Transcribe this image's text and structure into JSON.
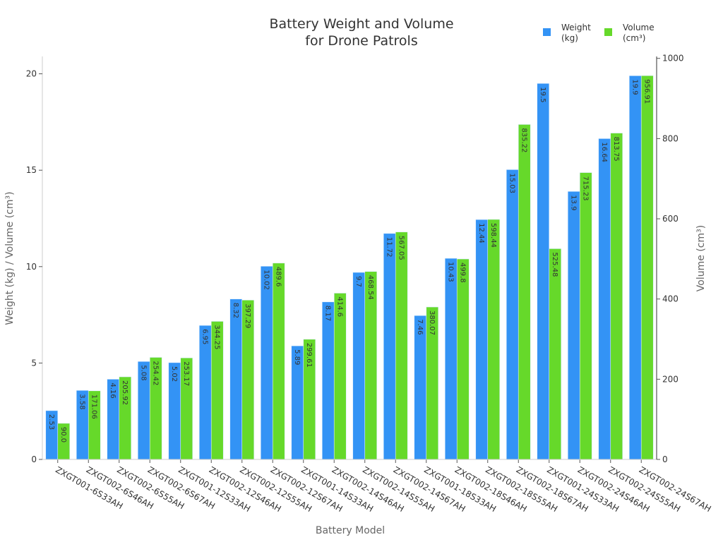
{
  "chart_data": {
    "type": "bar",
    "title": "Battery Weight and Volume\nfor Drone Patrols",
    "xlabel": "Battery Model",
    "ylabel": "Weight (kg) / Volume (cm³)",
    "y2label": "Volume (cm³)",
    "ylim": [
      0,
      20.9
    ],
    "y2lim": [
      0,
      1004.8
    ],
    "yticks": [
      0,
      5,
      10,
      15,
      20
    ],
    "y2ticks": [
      0,
      200,
      400,
      600,
      800,
      1000
    ],
    "grid": false,
    "legend_placement": "top-right",
    "categories": [
      "ZXGT001-6S33AH",
      "ZXGT002-6S46AH",
      "ZXGT002-6S55AH",
      "ZXGT002-6S67AH",
      "ZXGT001-12S33AH",
      "ZXGT002-12S46AH",
      "ZXGT002-12S55AH",
      "ZXGT002-12S67AH",
      "ZXGT001-14S33AH",
      "ZXGT002-14S46AH",
      "ZXGT002-14S55AH",
      "ZXGT002-14S67AH",
      "ZXGT001-18S33AH",
      "ZXGT002-18S46AH",
      "ZXGT002-18S55AH",
      "ZXGT002-18S67AH",
      "ZXGT001-24S33AH",
      "ZXGT002-24S46AH",
      "ZXGT002-24S55AH",
      "ZXGT002-24S67AH"
    ],
    "series": [
      {
        "name": "Weight\n(kg)",
        "axis": "left",
        "color": "#3393f5",
        "values": [
          2.53,
          3.58,
          4.16,
          5.08,
          5.02,
          6.95,
          8.32,
          10.02,
          5.89,
          8.17,
          9.7,
          11.72,
          7.46,
          10.43,
          12.44,
          15.03,
          19.5,
          13.9,
          16.64,
          19.9
        ],
        "labels": [
          "2.53",
          "3.58",
          "4.16",
          "5.08",
          "5.02",
          "6.95",
          "8.32",
          "10.02",
          "5.89",
          "8.17",
          "9.7",
          "11.72",
          "7.46",
          "10.43",
          "12.44",
          "15.03",
          "19.5",
          "13.9",
          "16.64",
          "19.9"
        ]
      },
      {
        "name": "Volume\n(cm³)",
        "axis": "right",
        "color": "#66d92a",
        "values": [
          90.0,
          171.06,
          205.92,
          254.42,
          253.17,
          344.25,
          397.29,
          489.6,
          299.61,
          414.6,
          468.54,
          567.05,
          380.07,
          499.8,
          598.44,
          835.22,
          525.48,
          715.23,
          813.75,
          956.91
        ],
        "labels": [
          "90.0",
          "171.06",
          "205.92",
          "254.42",
          "253.17",
          "344.25",
          "397.29",
          "489.6",
          "299.61",
          "414.6",
          "468.54",
          "567.05",
          "380.07",
          "499.8",
          "598.44",
          "835.22",
          "525.48",
          "715.23",
          "813.75",
          "956.91"
        ]
      }
    ]
  }
}
